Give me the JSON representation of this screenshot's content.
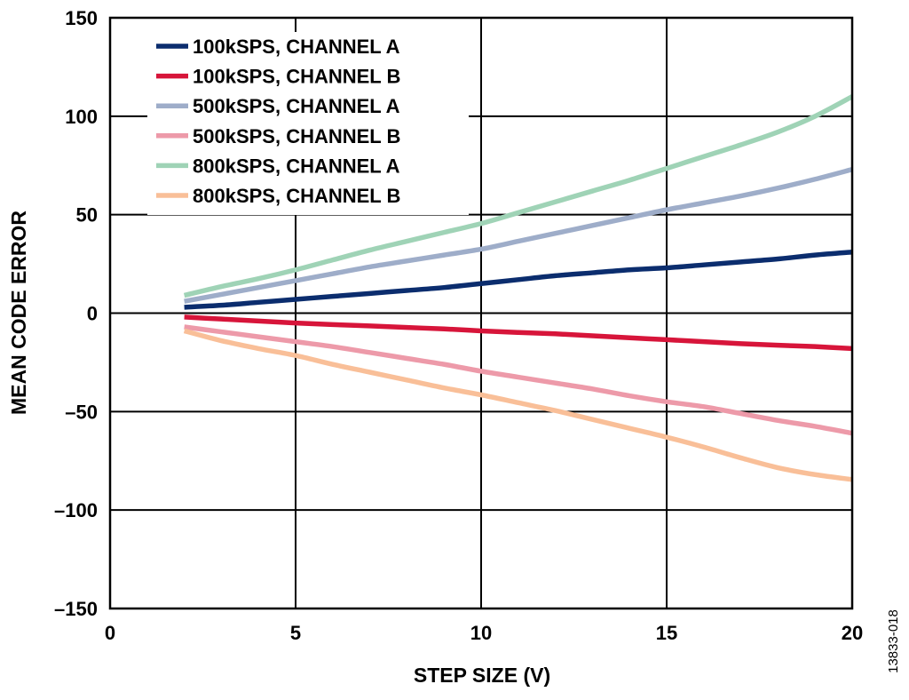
{
  "chart_data": {
    "type": "line",
    "title": "",
    "xlabel": "STEP SIZE (V)",
    "ylabel": "MEAN CODE ERROR",
    "xlim": [
      0,
      20
    ],
    "ylim": [
      -150,
      150
    ],
    "x_ticks": [
      0,
      5,
      10,
      15,
      20
    ],
    "y_ticks": [
      -150,
      -100,
      -50,
      0,
      50,
      100,
      150
    ],
    "x_tick_labels": [
      "0",
      "5",
      "10",
      "15",
      "20"
    ],
    "y_tick_labels": [
      "–150",
      "–100",
      "–50",
      "0",
      "50",
      "100",
      "150"
    ],
    "grid": true,
    "legend_position": "top-left",
    "figure_id": "13833-018",
    "series": [
      {
        "name": "100kSPS, CHANNEL A",
        "color": "#0b2d6e",
        "x": [
          2,
          3,
          4,
          5,
          6,
          7,
          8,
          9,
          10,
          11,
          12,
          13,
          14,
          15,
          16,
          17,
          18,
          19,
          20
        ],
        "y": [
          3,
          4,
          5.5,
          7,
          8.5,
          10,
          11.5,
          13,
          15,
          17,
          19,
          20.5,
          22,
          23,
          24.5,
          26,
          27.5,
          29.5,
          31
        ]
      },
      {
        "name": "100kSPS, CHANNEL B",
        "color": "#d7153a",
        "x": [
          2,
          3,
          4,
          5,
          6,
          7,
          8,
          9,
          10,
          11,
          12,
          13,
          14,
          15,
          16,
          17,
          18,
          19,
          20
        ],
        "y": [
          -2,
          -3,
          -4,
          -5,
          -5.8,
          -6.5,
          -7.3,
          -8,
          -9,
          -9.8,
          -10.5,
          -11.5,
          -12.5,
          -13.5,
          -14.5,
          -15.5,
          -16.3,
          -17,
          -18
        ]
      },
      {
        "name": "500kSPS, CHANNEL A",
        "color": "#9eadc9",
        "x": [
          2,
          3,
          4,
          5,
          6,
          7,
          8,
          9,
          10,
          11,
          12,
          13,
          14,
          15,
          16,
          17,
          18,
          19,
          20
        ],
        "y": [
          6,
          9.5,
          13,
          16.5,
          20,
          23.5,
          26.5,
          29.5,
          32.5,
          36.5,
          40.5,
          44.5,
          48.5,
          52.5,
          56,
          59.5,
          63.5,
          68,
          73
        ]
      },
      {
        "name": "500kSPS, CHANNEL B",
        "color": "#ed9aa9",
        "x": [
          2,
          3,
          4,
          5,
          6,
          7,
          8,
          9,
          10,
          11,
          12,
          13,
          14,
          15,
          16,
          17,
          18,
          19,
          20
        ],
        "y": [
          -7,
          -9.5,
          -12,
          -14.5,
          -17,
          -20,
          -23,
          -26,
          -29.5,
          -32.5,
          -35.5,
          -38.5,
          -42,
          -45,
          -47.5,
          -51,
          -54.5,
          -57.5,
          -61
        ]
      },
      {
        "name": "800kSPS, CHANNEL A",
        "color": "#9fd3b6",
        "x": [
          2,
          3,
          4,
          5,
          6,
          7,
          8,
          9,
          10,
          11,
          12,
          13,
          14,
          15,
          16,
          17,
          18,
          19,
          20
        ],
        "y": [
          9,
          13.5,
          17.5,
          22,
          27,
          32,
          36.5,
          41,
          45.5,
          51,
          56.5,
          62,
          67.5,
          73.5,
          79.5,
          85.5,
          92,
          100,
          110
        ]
      },
      {
        "name": "800kSPS, CHANNEL B",
        "color": "#f9bf98",
        "x": [
          2,
          3,
          4,
          5,
          6,
          7,
          8,
          9,
          10,
          11,
          12,
          13,
          14,
          15,
          16,
          17,
          18,
          19,
          20
        ],
        "y": [
          -9,
          -14,
          -18,
          -21.5,
          -26,
          -30,
          -34,
          -38,
          -41.5,
          -45.5,
          -49.5,
          -54,
          -58.5,
          -63,
          -68,
          -73.5,
          -78.5,
          -82,
          -84.5
        ]
      }
    ]
  }
}
